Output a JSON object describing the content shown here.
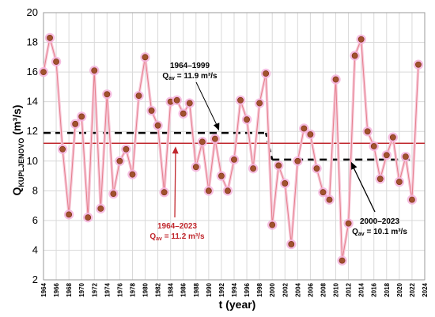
{
  "chart_data": {
    "type": "line",
    "xlabel": "t (year)",
    "ylabel": {
      "main": "Q",
      "sub": "KUPLJENOVO",
      "unit": " (m³/s)"
    },
    "xlim": [
      1964,
      2024
    ],
    "ylim": [
      2,
      20
    ],
    "yticks": [
      2,
      4,
      6,
      8,
      10,
      12,
      14,
      16,
      18,
      20
    ],
    "xticks": [
      1964,
      1966,
      1968,
      1970,
      1972,
      1974,
      1976,
      1978,
      1980,
      1982,
      1984,
      1986,
      1988,
      1990,
      1992,
      1994,
      1996,
      1998,
      2000,
      2002,
      2004,
      2006,
      2008,
      2010,
      2012,
      2014,
      2016,
      2018,
      2020,
      2022,
      2024
    ],
    "grid": true,
    "series": [
      {
        "color": "#a0522d",
        "x": [
          1964,
          1965,
          1966,
          1967,
          1968,
          1969,
          1970,
          1971,
          1972,
          1973,
          1974,
          1975,
          1976,
          1977,
          1978,
          1979,
          1980,
          1981,
          1982,
          1983,
          1984,
          1985,
          1986,
          1987,
          1988,
          1989,
          1990,
          1991,
          1992,
          1993,
          1994,
          1995,
          1996,
          1997,
          1998,
          1999,
          2000,
          2001,
          2002,
          2003,
          2004,
          2005,
          2006,
          2007,
          2008,
          2009,
          2010,
          2011,
          2012,
          2013,
          2014,
          2015,
          2016,
          2017,
          2018,
          2019,
          2020,
          2021,
          2022,
          2023
        ],
        "y": [
          16.0,
          18.3,
          16.7,
          10.8,
          6.4,
          12.5,
          13.0,
          6.2,
          16.1,
          6.8,
          14.5,
          7.8,
          10.0,
          10.8,
          9.1,
          14.4,
          17.0,
          13.4,
          12.4,
          7.9,
          14.0,
          14.1,
          13.2,
          13.9,
          9.6,
          11.3,
          8.0,
          11.5,
          9.0,
          8.0,
          10.1,
          14.1,
          12.8,
          9.5,
          13.9,
          15.9,
          5.7,
          9.7,
          8.5,
          4.4,
          10.0,
          12.2,
          11.8,
          9.5,
          7.9,
          7.4,
          15.5,
          3.3,
          5.8,
          17.1,
          18.2,
          12.0,
          11.0,
          8.8,
          10.4,
          11.6,
          8.6,
          10.3,
          7.4,
          16.5
        ]
      }
    ],
    "reference_lines": [
      {
        "label": "1964–2023",
        "value_label": "Qav = 11.2 m³/s",
        "y": 11.2,
        "x_range": [
          1964,
          2024
        ],
        "style": "solid",
        "color": "#c0272d"
      },
      {
        "label": "1964–1999",
        "value_label": "Qav = 11.9 m³/s",
        "y": 11.9,
        "x_range": [
          1964,
          1999
        ],
        "style": "dashed",
        "color": "#000000"
      },
      {
        "label": "2000–2023",
        "value_label": "Qav = 10.1 m³/s",
        "y": 10.1,
        "x_range": [
          2000,
          2024
        ],
        "style": "dashed",
        "color": "#000000"
      }
    ],
    "annotations": [
      {
        "period": "1964–1999",
        "q": "Q",
        "sub": "av",
        "value": " = 11.9 m³/s"
      },
      {
        "period": "1964–2023",
        "q": "Q",
        "sub": "av",
        "value": " = 11.2 m³/s"
      },
      {
        "period": "2000–2023",
        "q": "Q",
        "sub": "av",
        "value": " = 10.1 m³/s"
      }
    ]
  }
}
